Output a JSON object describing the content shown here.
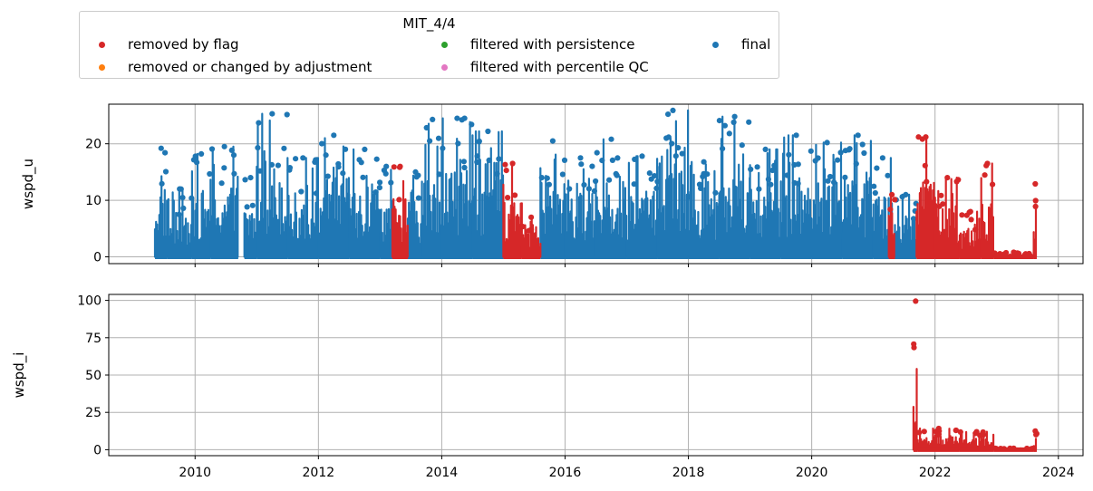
{
  "chart_data": {
    "type": "scatter",
    "title": "MIT_4/4",
    "legend": {
      "title": "MIT_4/4",
      "placement": "top",
      "entries": [
        {
          "label": "removed by flag",
          "color": "#d62728"
        },
        {
          "label": "removed or changed by adjustment",
          "color": "#ff7f0e"
        },
        {
          "label": "filtered with persistence",
          "color": "#2ca02c"
        },
        {
          "label": "filtered with percentile QC",
          "color": "#e377c2"
        },
        {
          "label": "final",
          "color": "#1f77b4"
        }
      ]
    },
    "x_axis": {
      "range": [
        2008.6,
        2024.4
      ],
      "ticks": [
        2010,
        2012,
        2014,
        2016,
        2018,
        2020,
        2022,
        2024
      ],
      "tick_labels": [
        "2010",
        "2012",
        "2014",
        "2016",
        "2018",
        "2020",
        "2022",
        "2024"
      ]
    },
    "panels": [
      {
        "ylabel": "wspd_u",
        "ylim": [
          -1.2,
          27
        ],
        "yticks": [
          0,
          10,
          20
        ],
        "ytick_labels": [
          "0",
          "10",
          "20"
        ],
        "grid": true,
        "series": [
          {
            "name": "final",
            "color": "#1f77b4",
            "segments": [
              {
                "start": 2009.35,
                "end": 2009.55,
                "max": 19.2
              },
              {
                "start": 2009.55,
                "end": 2009.95,
                "max": 12.0
              },
              {
                "start": 2009.95,
                "end": 2010.25,
                "max": 18.2
              },
              {
                "start": 2010.25,
                "end": 2010.7,
                "max": 19.5
              },
              {
                "start": 2010.8,
                "end": 2011.0,
                "max": 14.0
              },
              {
                "start": 2011.0,
                "end": 2011.5,
                "max": 25.3
              },
              {
                "start": 2011.5,
                "end": 2012.0,
                "max": 17.5
              },
              {
                "start": 2012.0,
                "end": 2012.5,
                "max": 21.5
              },
              {
                "start": 2012.5,
                "end": 2013.0,
                "max": 19.0
              },
              {
                "start": 2013.0,
                "end": 2013.2,
                "max": 16.0
              },
              {
                "start": 2013.45,
                "end": 2013.7,
                "max": 15.0
              },
              {
                "start": 2013.7,
                "end": 2014.0,
                "max": 24.3
              },
              {
                "start": 2014.0,
                "end": 2014.5,
                "max": 24.5
              },
              {
                "start": 2014.5,
                "end": 2015.0,
                "max": 22.2
              },
              {
                "start": 2015.6,
                "end": 2016.0,
                "max": 20.5
              },
              {
                "start": 2016.0,
                "end": 2016.5,
                "max": 17.5
              },
              {
                "start": 2016.5,
                "end": 2017.0,
                "max": 20.8
              },
              {
                "start": 2017.0,
                "end": 2017.5,
                "max": 17.8
              },
              {
                "start": 2017.5,
                "end": 2018.0,
                "max": 25.9
              },
              {
                "start": 2018.0,
                "end": 2018.5,
                "max": 16.8
              },
              {
                "start": 2018.5,
                "end": 2019.0,
                "max": 24.8
              },
              {
                "start": 2019.0,
                "end": 2019.5,
                "max": 19.0
              },
              {
                "start": 2019.5,
                "end": 2020.0,
                "max": 21.5
              },
              {
                "start": 2020.0,
                "end": 2020.5,
                "max": 20.2
              },
              {
                "start": 2020.5,
                "end": 2021.0,
                "max": 21.5
              },
              {
                "start": 2021.0,
                "end": 2021.3,
                "max": 17.5
              },
              {
                "start": 2021.35,
                "end": 2021.7,
                "max": 11.0
              }
            ]
          },
          {
            "name": "removed by flag",
            "color": "#d62728",
            "segments": [
              {
                "start": 2013.2,
                "end": 2013.45,
                "max": 16.0
              },
              {
                "start": 2015.0,
                "end": 2015.3,
                "max": 16.5
              },
              {
                "start": 2015.3,
                "end": 2015.6,
                "max": 7.0
              },
              {
                "start": 2021.25,
                "end": 2021.35,
                "max": 11.0
              },
              {
                "start": 2021.7,
                "end": 2022.0,
                "max": 21.2
              },
              {
                "start": 2022.0,
                "end": 2022.4,
                "max": 14.0
              },
              {
                "start": 2022.4,
                "end": 2022.75,
                "max": 8.0
              },
              {
                "start": 2022.75,
                "end": 2022.95,
                "max": 16.5
              },
              {
                "start": 2022.95,
                "end": 2023.6,
                "max": 0.8
              },
              {
                "start": 2023.6,
                "end": 2023.65,
                "max": 12.9
              }
            ]
          }
        ]
      },
      {
        "ylabel": "wspd_i",
        "ylim": [
          -4,
          104
        ],
        "yticks": [
          0,
          25,
          50,
          75,
          100
        ],
        "ytick_labels": [
          "0",
          "25",
          "50",
          "75",
          "100"
        ],
        "grid": true,
        "series": [
          {
            "name": "removed by flag",
            "color": "#d62728",
            "segments": [
              {
                "start": 2021.65,
                "end": 2021.72,
                "max": 99.5
              },
              {
                "start": 2021.72,
                "end": 2022.4,
                "max": 14.2
              },
              {
                "start": 2022.4,
                "end": 2022.95,
                "max": 12.0
              },
              {
                "start": 2022.95,
                "end": 2023.6,
                "max": 1.0
              },
              {
                "start": 2023.6,
                "end": 2023.65,
                "max": 12.5
              }
            ]
          }
        ]
      }
    ]
  }
}
